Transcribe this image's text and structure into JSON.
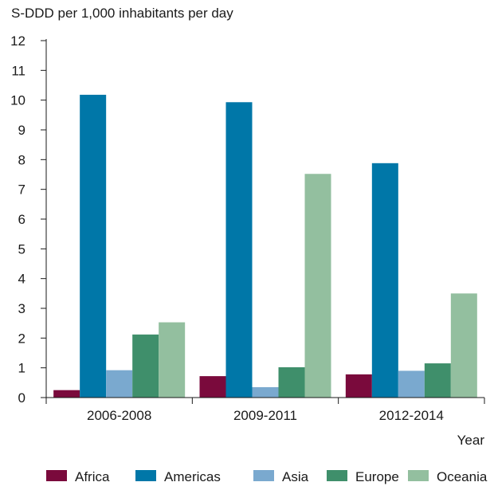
{
  "chart_data": {
    "type": "bar",
    "ylabel": "S-DDD per 1,000 inhabitants per day",
    "xlabel": "Year",
    "categories": [
      "2006-2008",
      "2009-2011",
      "2012-2014"
    ],
    "ylim": [
      0,
      12
    ],
    "yticks": [
      0,
      1,
      2,
      3,
      4,
      5,
      6,
      7,
      8,
      9,
      10,
      11,
      12
    ],
    "grid": false,
    "legend_position": "bottom",
    "series": [
      {
        "name": "Africa",
        "color": "#7a0a3c",
        "values": [
          0.25,
          0.72,
          0.78
        ]
      },
      {
        "name": "Americas",
        "color": "#0077a8",
        "values": [
          10.18,
          9.93,
          7.88
        ]
      },
      {
        "name": "Asia",
        "color": "#7aa9cf",
        "values": [
          0.92,
          0.35,
          0.9
        ]
      },
      {
        "name": "Europe",
        "color": "#3f8f6b",
        "values": [
          2.12,
          1.02,
          1.15
        ]
      },
      {
        "name": "Oceania",
        "color": "#93bf9f",
        "values": [
          2.53,
          7.52,
          3.5
        ]
      }
    ]
  }
}
